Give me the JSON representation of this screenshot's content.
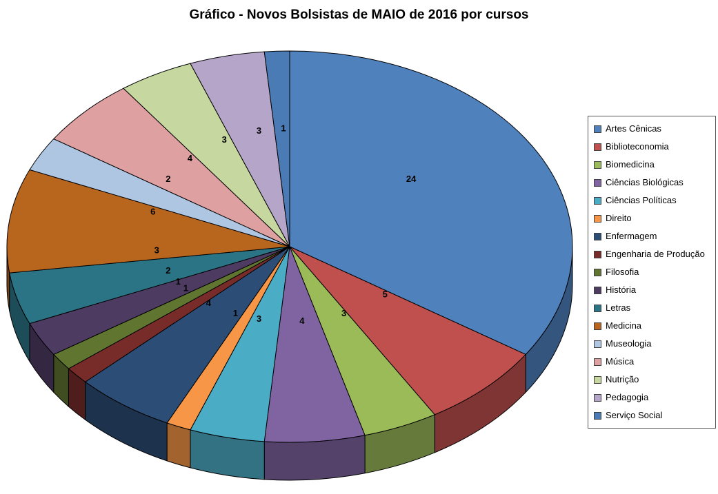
{
  "chart_data": {
    "type": "pie",
    "style": "3d",
    "title": "Gráfico - Novos Bolsistas de MAIO de 2016 por cursos",
    "categories": [
      "Artes Cênicas",
      "Biblioteconomia",
      "Biomedicina",
      "Ciências Biológicas",
      "Ciências Políticas",
      "Direito",
      "Enfermagem",
      "Engenharia de Produção",
      "Filosofia",
      "História",
      "Letras",
      "Medicina",
      "Museologia",
      "Música",
      "Nutrição",
      "Pedagogia",
      "Serviço Social"
    ],
    "values": [
      24,
      5,
      3,
      4,
      3,
      1,
      4,
      1,
      1,
      2,
      3,
      6,
      2,
      4,
      3,
      3,
      1
    ],
    "colors": [
      "#4F81BD",
      "#C0504D",
      "#9BBB59",
      "#8064A2",
      "#4BACC6",
      "#F79646",
      "#2C4D75",
      "#772C2A",
      "#5F7530",
      "#4D3B62",
      "#2B7485",
      "#B8651D",
      "#AEC6E2",
      "#DFA0A1",
      "#C6D8A0",
      "#B5A6C9",
      "#4A7BB5"
    ],
    "labels_shown": "values",
    "legend_position": "right",
    "start_angle_deg": 0,
    "direction": "clockwise",
    "background": "#FFFFFF"
  }
}
